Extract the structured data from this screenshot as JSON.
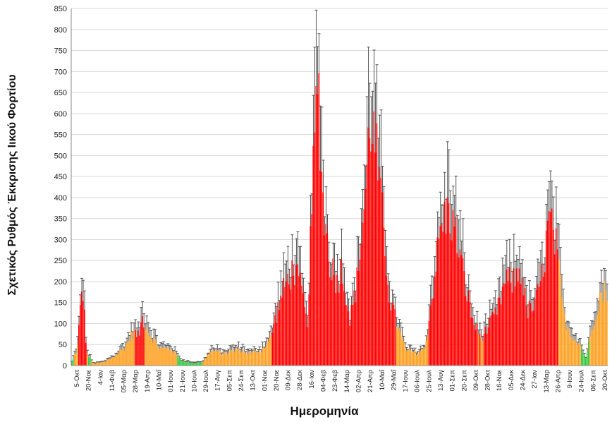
{
  "chart_data": {
    "type": "bar",
    "title": "",
    "xlabel": "Ημερομηνία",
    "ylabel": "Σχετικός Ρυθμός Έκκρισης Ιικού Φορτίου",
    "ylim": [
      0,
      850
    ],
    "yticks": [
      0,
      50,
      100,
      150,
      200,
      250,
      300,
      350,
      400,
      450,
      500,
      550,
      600,
      650,
      700,
      750,
      800,
      850
    ],
    "grid": true,
    "error_bars": true,
    "level_colors": {
      "low": "#2ecc40",
      "medium": "#ffa020",
      "high": "#ff0000",
      "error_bar": "#555555"
    },
    "x_tick_labels": [
      "5-Οκτ",
      "20-Νοε",
      "4-Ιαν",
      "11-Φεβ",
      "05-Μαρ",
      "28-Μαρ",
      "19-Απρ",
      "10-Μαΐ",
      "01-Ιουν",
      "21-Ιουν",
      "10-Ιουλ",
      "29-Ιουλ",
      "17-Αυγ",
      "05-Σεπ",
      "24-Σεπ",
      "13-Οκτ",
      "01-Νοε",
      "20-Νοε",
      "09-Δεκ",
      "28-Δεκ",
      "16-Ιαν",
      "04-Φεβ",
      "23-Φεβ",
      "14-Μαρ",
      "02-Απρ",
      "21-Απρ",
      "10-Μαΐ",
      "29-Μαΐ",
      "17-Ιουν",
      "06-Ιουλ",
      "25-Ιουλ",
      "13-Αυγ",
      "01-Σεπ",
      "20-Σεπ",
      "09-Οκτ",
      "28-Οκτ",
      "16-Νοε",
      "05-Δεκ",
      "24-Δεκ",
      "27-Ιαν",
      "13-Μαρ",
      "26-Απρ",
      "9-Ιουν",
      "24-Ιουλ",
      "06-Σεπ",
      "20-Οκτ"
    ],
    "series_profile": [
      [
        0,
        8
      ],
      [
        0.01,
        40
      ],
      [
        0.02,
        195
      ],
      [
        0.028,
        30
      ],
      [
        0.04,
        5
      ],
      [
        0.06,
        8
      ],
      [
        0.08,
        22
      ],
      [
        0.1,
        45
      ],
      [
        0.115,
        80
      ],
      [
        0.125,
        70
      ],
      [
        0.132,
        115
      ],
      [
        0.145,
        75
      ],
      [
        0.165,
        40
      ],
      [
        0.185,
        40
      ],
      [
        0.205,
        12
      ],
      [
        0.225,
        6
      ],
      [
        0.245,
        8
      ],
      [
        0.26,
        35
      ],
      [
        0.285,
        28
      ],
      [
        0.31,
        38
      ],
      [
        0.335,
        28
      ],
      [
        0.355,
        38
      ],
      [
        0.37,
        60
      ],
      [
        0.385,
        135
      ],
      [
        0.4,
        195
      ],
      [
        0.415,
        230
      ],
      [
        0.43,
        180
      ],
      [
        0.44,
        90
      ],
      [
        0.452,
        480
      ],
      [
        0.46,
        700
      ],
      [
        0.47,
        380
      ],
      [
        0.482,
        250
      ],
      [
        0.495,
        200
      ],
      [
        0.505,
        230
      ],
      [
        0.52,
        110
      ],
      [
        0.532,
        190
      ],
      [
        0.548,
        400
      ],
      [
        0.558,
        595
      ],
      [
        0.568,
        520
      ],
      [
        0.58,
        360
      ],
      [
        0.595,
        155
      ],
      [
        0.61,
        90
      ],
      [
        0.625,
        35
      ],
      [
        0.645,
        30
      ],
      [
        0.66,
        40
      ],
      [
        0.675,
        185
      ],
      [
        0.69,
        330
      ],
      [
        0.705,
        370
      ],
      [
        0.72,
        300
      ],
      [
        0.735,
        195
      ],
      [
        0.75,
        105
      ],
      [
        0.765,
        65
      ],
      [
        0.78,
        95
      ],
      [
        0.795,
        130
      ],
      [
        0.81,
        200
      ],
      [
        0.825,
        200
      ],
      [
        0.84,
        230
      ],
      [
        0.85,
        130
      ],
      [
        0.865,
        140
      ],
      [
        0.88,
        220
      ],
      [
        0.892,
        350
      ],
      [
        0.905,
        280
      ],
      [
        0.92,
        110
      ],
      [
        0.935,
        70
      ],
      [
        0.95,
        50
      ],
      [
        0.96,
        15
      ],
      [
        0.972,
        90
      ],
      [
        0.985,
        160
      ],
      [
        1.0,
        185
      ]
    ]
  }
}
